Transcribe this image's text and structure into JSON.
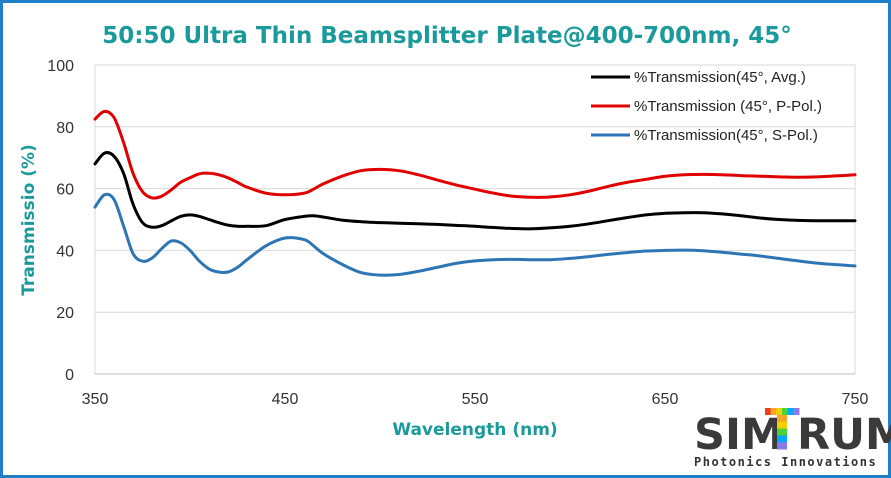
{
  "chart_data": {
    "type": "line",
    "title": "50:50 Ultra Thin Beamsplitter Plate@400-700nm, 45°",
    "xlabel": "Wavelength (nm)",
    "ylabel": "Transmissio (%)",
    "xlim": [
      350,
      750
    ],
    "ylim": [
      0,
      100
    ],
    "xticks": [
      350,
      450,
      550,
      650,
      750
    ],
    "yticks": [
      0,
      20,
      40,
      60,
      80,
      100
    ],
    "grid": "horizontal",
    "legend_position": "top-right",
    "series": [
      {
        "name": "%Transmission(45°, Avg.)",
        "color": "#000000",
        "x": [
          350,
          355,
          360,
          365,
          370,
          375,
          380,
          385,
          390,
          395,
          400,
          405,
          410,
          415,
          420,
          425,
          430,
          440,
          450,
          460,
          465,
          470,
          480,
          490,
          500,
          510,
          520,
          530,
          540,
          550,
          560,
          570,
          580,
          590,
          600,
          610,
          620,
          630,
          640,
          650,
          660,
          670,
          680,
          690,
          700,
          710,
          720,
          730,
          740,
          750
        ],
        "values": [
          68,
          71.5,
          70.5,
          65,
          55,
          49,
          47.5,
          48,
          49.5,
          51,
          51.5,
          51,
          50,
          49,
          48.2,
          47.8,
          47.8,
          48,
          50,
          51,
          51.2,
          50.8,
          49.8,
          49.3,
          49,
          48.8,
          48.6,
          48.4,
          48.1,
          47.8,
          47.4,
          47.1,
          47,
          47.3,
          47.8,
          48.6,
          49.6,
          50.6,
          51.5,
          52,
          52.2,
          52.2,
          51.8,
          51.2,
          50.5,
          50,
          49.7,
          49.6,
          49.6,
          49.6
        ]
      },
      {
        "name": "%Transmission (45°, P-Pol.)",
        "color": "#e00000",
        "x": [
          350,
          355,
          360,
          365,
          370,
          375,
          380,
          385,
          390,
          395,
          400,
          405,
          410,
          415,
          420,
          425,
          430,
          440,
          450,
          460,
          465,
          470,
          480,
          490,
          500,
          510,
          520,
          530,
          540,
          550,
          560,
          570,
          580,
          590,
          600,
          610,
          620,
          630,
          640,
          650,
          660,
          670,
          680,
          690,
          700,
          710,
          720,
          730,
          740,
          750
        ],
        "values": [
          82.5,
          85,
          83,
          75,
          65,
          59,
          57,
          57.5,
          59.5,
          62,
          63.5,
          64.8,
          65,
          64.5,
          63.5,
          62,
          60.5,
          58.5,
          58,
          58.5,
          59.8,
          61.5,
          64,
          65.8,
          66.2,
          65.8,
          64.5,
          62.8,
          61.2,
          59.8,
          58.5,
          57.5,
          57.2,
          57.3,
          58,
          59.2,
          60.7,
          62,
          63,
          64,
          64.5,
          64.6,
          64.5,
          64.2,
          64,
          63.8,
          63.7,
          63.8,
          64.1,
          64.5
        ]
      },
      {
        "name": "%Transmission(45°, S-Pol.)",
        "color": "#2e75b6",
        "x": [
          350,
          355,
          360,
          365,
          370,
          375,
          380,
          385,
          390,
          395,
          400,
          405,
          410,
          415,
          420,
          425,
          430,
          440,
          450,
          460,
          465,
          470,
          480,
          490,
          500,
          510,
          520,
          530,
          540,
          550,
          560,
          570,
          580,
          590,
          600,
          610,
          620,
          630,
          640,
          650,
          660,
          670,
          680,
          690,
          700,
          710,
          720,
          730,
          740,
          750
        ],
        "values": [
          54,
          58,
          56.5,
          48,
          39,
          36.5,
          37.5,
          40.5,
          43,
          42.5,
          40,
          36.5,
          34,
          33,
          33,
          34.5,
          37,
          41.5,
          44,
          43.5,
          41.5,
          39,
          35.5,
          32.8,
          32,
          32.2,
          33.2,
          34.5,
          35.8,
          36.6,
          37,
          37.1,
          37,
          37,
          37.4,
          38,
          38.7,
          39.3,
          39.8,
          40,
          40.1,
          39.9,
          39.4,
          38.8,
          38.2,
          37.4,
          36.6,
          35.9,
          35.4,
          35
        ]
      }
    ]
  },
  "logo": {
    "text_sim": "SIM",
    "text_rum": "RUM",
    "subtitle": "Photonics Innovations",
    "letter_colors": [
      "#e84118",
      "#f5a623",
      "#f1d200",
      "#4cd137",
      "#00a8ff",
      "#8c7ae6"
    ]
  }
}
